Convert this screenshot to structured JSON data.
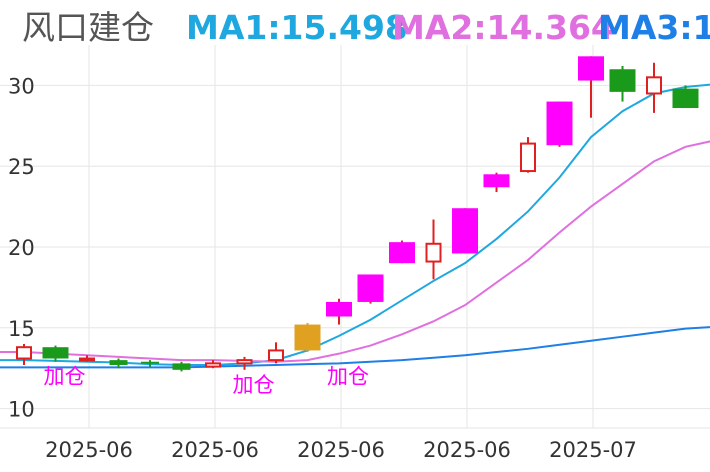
{
  "header": {
    "title": "风口建仓",
    "ma1": "MA1:15.498",
    "ma2": "MA2:14.364",
    "ma3": "MA3:1"
  },
  "colors": {
    "ma1": "#1fa8e0",
    "ma2": "#e070e0",
    "ma3": "#1e7fe6",
    "up": "#ff00ff",
    "up_hollow": "#e02020",
    "down": "#1a9a1a",
    "special": "#e0a020",
    "signal": "#ff00ff",
    "grid": "#e6e6e6"
  },
  "chart_data": {
    "type": "candlestick",
    "title": "风口建仓",
    "y_ticks": [
      "10",
      "15",
      "20",
      "25",
      "30"
    ],
    "y_tick_values": [
      10,
      15,
      20,
      25,
      30
    ],
    "ylim": [
      8.8,
      32.5
    ],
    "x_labels": [
      "2025-06",
      "2025-06",
      "2025-06",
      "2025-06",
      "2025-07"
    ],
    "x_label_index": [
      2,
      6,
      10,
      14,
      18
    ],
    "n_slots": 22,
    "candles": [
      {
        "o": 13.1,
        "h": 14.0,
        "l": 12.7,
        "c": 13.8,
        "style": "hollow"
      },
      {
        "o": 13.8,
        "h": 13.9,
        "l": 12.9,
        "c": 13.1,
        "style": "down"
      },
      {
        "o": 13.1,
        "h": 13.3,
        "l": 12.9,
        "c": 13.0,
        "style": "hollow"
      },
      {
        "o": 13.0,
        "h": 13.1,
        "l": 12.5,
        "c": 12.7,
        "style": "down"
      },
      {
        "o": 12.9,
        "h": 13.0,
        "l": 12.6,
        "c": 12.8,
        "style": "down"
      },
      {
        "o": 12.8,
        "h": 12.9,
        "l": 12.3,
        "c": 12.4,
        "style": "down"
      },
      {
        "o": 12.6,
        "h": 13.0,
        "l": 12.5,
        "c": 12.8,
        "style": "hollow"
      },
      {
        "o": 12.8,
        "h": 13.2,
        "l": 12.4,
        "c": 13.0,
        "style": "hollow"
      },
      {
        "o": 13.0,
        "h": 14.1,
        "l": 12.8,
        "c": 13.6,
        "style": "hollow"
      },
      {
        "o": 13.6,
        "h": 15.3,
        "l": 13.5,
        "c": 15.2,
        "style": "special"
      },
      {
        "o": 15.7,
        "h": 16.8,
        "l": 15.2,
        "c": 16.6,
        "style": "up"
      },
      {
        "o": 16.6,
        "h": 18.3,
        "l": 16.5,
        "c": 18.3,
        "style": "up"
      },
      {
        "o": 19.0,
        "h": 20.4,
        "l": 19.0,
        "c": 20.3,
        "style": "up"
      },
      {
        "o": 19.1,
        "h": 21.7,
        "l": 18.0,
        "c": 20.2,
        "style": "hollow"
      },
      {
        "o": 19.6,
        "h": 22.4,
        "l": 19.6,
        "c": 22.4,
        "style": "up"
      },
      {
        "o": 23.7,
        "h": 24.6,
        "l": 23.4,
        "c": 24.5,
        "style": "up"
      },
      {
        "o": 24.7,
        "h": 26.8,
        "l": 24.6,
        "c": 26.4,
        "style": "hollow"
      },
      {
        "o": 26.3,
        "h": 29.0,
        "l": 26.2,
        "c": 29.0,
        "style": "up"
      },
      {
        "o": 30.3,
        "h": 31.8,
        "l": 28.0,
        "c": 31.8,
        "style": "up"
      },
      {
        "o": 31.0,
        "h": 31.2,
        "l": 29.0,
        "c": 29.6,
        "style": "down"
      },
      {
        "o": 29.5,
        "h": 31.4,
        "l": 28.3,
        "c": 30.5,
        "style": "hollow"
      },
      {
        "o": 29.8,
        "h": 30.0,
        "l": 28.6,
        "c": 28.6,
        "style": "down"
      }
    ],
    "series": [
      {
        "name": "MA1",
        "values": [
          13.0,
          12.95,
          12.9,
          12.85,
          12.75,
          12.7,
          12.7,
          12.8,
          13.0,
          13.6,
          14.5,
          15.5,
          16.7,
          17.9,
          19.0,
          20.5,
          22.2,
          24.3,
          26.8,
          28.4,
          29.5,
          29.9
        ]
      },
      {
        "name": "MA2",
        "values": [
          13.5,
          13.4,
          13.3,
          13.2,
          13.1,
          13.0,
          13.0,
          12.95,
          12.9,
          13.0,
          13.4,
          13.9,
          14.6,
          15.4,
          16.4,
          17.8,
          19.2,
          20.9,
          22.5,
          23.9,
          25.3,
          26.2
        ]
      },
      {
        "name": "MA3",
        "values": [
          12.55,
          12.55,
          12.55,
          12.55,
          12.55,
          12.55,
          12.6,
          12.65,
          12.7,
          12.75,
          12.8,
          12.9,
          13.0,
          13.15,
          13.3,
          13.5,
          13.7,
          13.95,
          14.2,
          14.45,
          14.7,
          14.95
        ]
      }
    ],
    "signals": [
      {
        "label": "加仓",
        "index": 1,
        "y": 12.9
      },
      {
        "label": "加仓",
        "index": 7,
        "y": 12.4
      },
      {
        "label": "加仓",
        "index": 10,
        "y": 12.9
      }
    ]
  }
}
